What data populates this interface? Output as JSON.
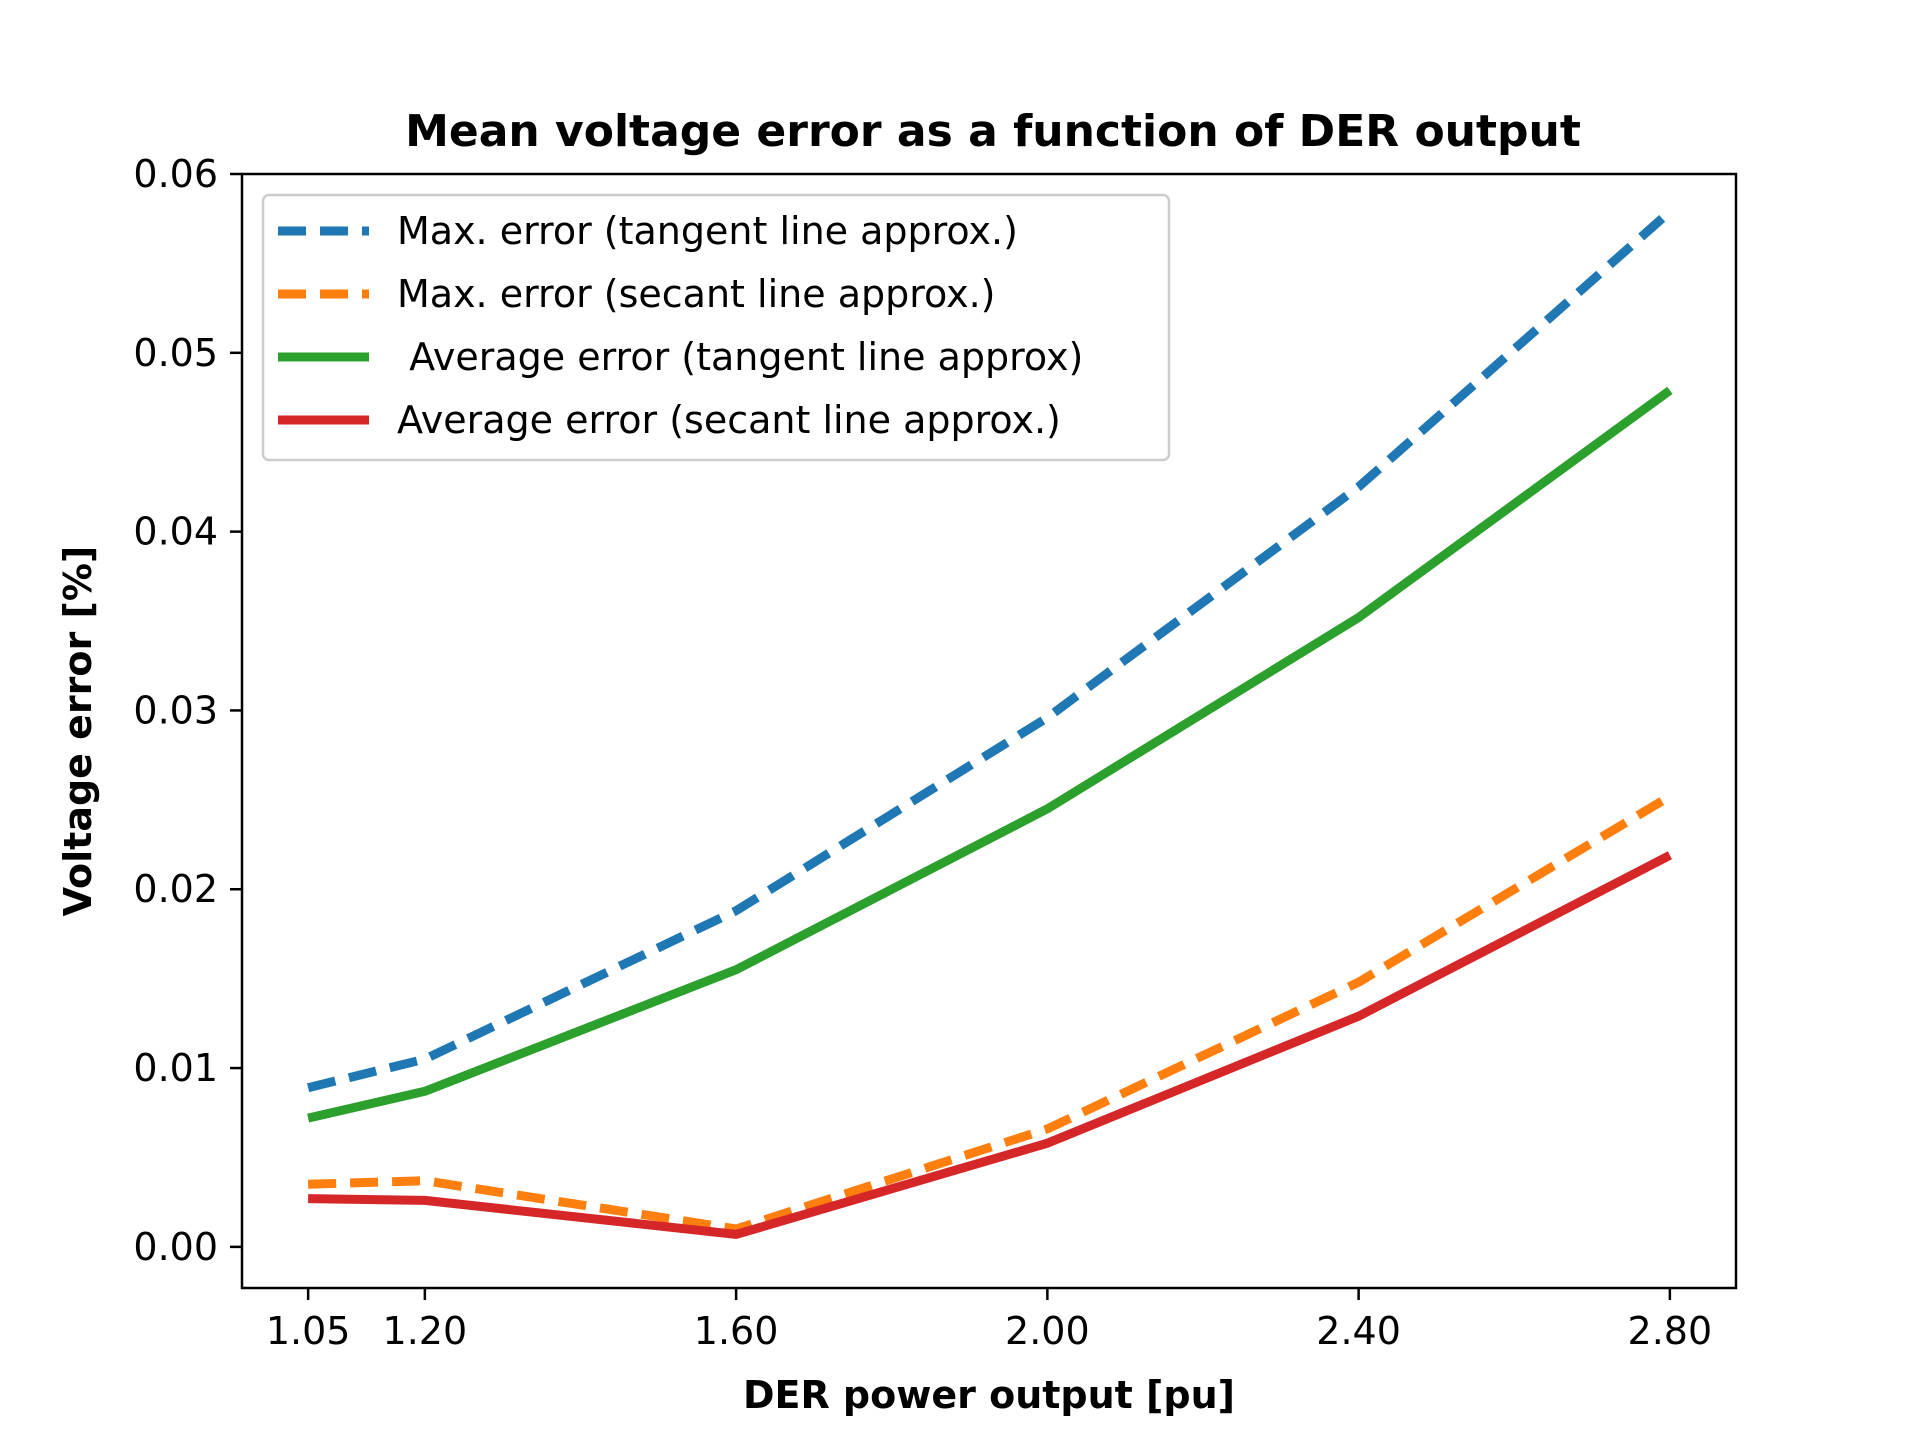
{
  "chart_data": {
    "type": "line",
    "title": "Mean voltage error as a function of DER output",
    "xlabel": "DER power output [pu]",
    "ylabel": "Voltage error [%]",
    "x": [
      1.05,
      1.2,
      1.6,
      2.0,
      2.4,
      2.8
    ],
    "x_tick_labels": [
      "1.05",
      "1.20",
      "1.60",
      "2.00",
      "2.40",
      "2.80"
    ],
    "y_ticks": [
      0.0,
      0.01,
      0.02,
      0.03,
      0.04,
      0.05,
      0.06
    ],
    "y_tick_labels": [
      "0.00",
      "0.01",
      "0.02",
      "0.03",
      "0.04",
      "0.05",
      "0.06"
    ],
    "xlim": [
      0.965,
      2.885
    ],
    "ylim": [
      -0.0023,
      0.06
    ],
    "grid": false,
    "legend_position": "upper-left",
    "series": [
      {
        "name": "Max. error (tangent line approx.)",
        "color": "#1f77b4",
        "linestyle": "dashed",
        "values": [
          0.0089,
          0.0105,
          0.0188,
          0.0296,
          0.0425,
          0.0579
        ]
      },
      {
        "name": "Max. error (secant line approx.)",
        "color": "#ff7f0e",
        "linestyle": "dashed",
        "values": [
          0.0035,
          0.0037,
          0.001,
          0.0066,
          0.0148,
          0.0252
        ]
      },
      {
        "name": " Average error (tangent line approx)",
        "color": "#2ca02c",
        "linestyle": "solid",
        "values": [
          0.0072,
          0.0087,
          0.0155,
          0.0245,
          0.0352,
          0.0479
        ]
      },
      {
        "name": "Average error (secant line approx.)",
        "color": "#d62728",
        "linestyle": "solid",
        "values": [
          0.0027,
          0.0026,
          0.0007,
          0.0058,
          0.0129,
          0.0219
        ]
      }
    ]
  }
}
